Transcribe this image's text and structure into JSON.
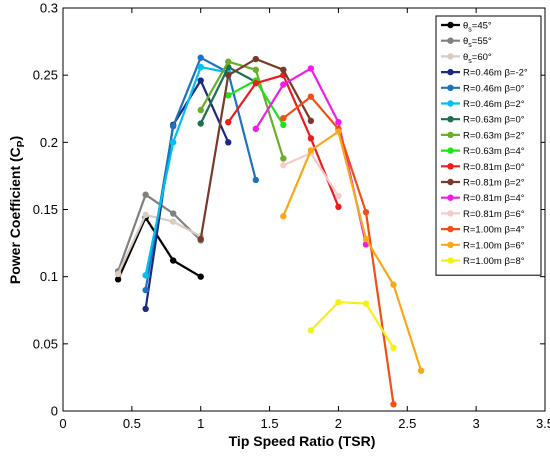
{
  "chart_data": {
    "type": "line",
    "xlabel": "Tip Speed Ratio (TSR)",
    "ylabel": "Power Coefficient (C",
    "ylabel_sub": "P",
    "ylabel_close": ")",
    "xlim": [
      0,
      3.5
    ],
    "ylim": [
      0,
      0.3
    ],
    "xticks": [
      0,
      0.5,
      1,
      1.5,
      2,
      2.5,
      3,
      3.5
    ],
    "yticks": [
      0,
      0.05,
      0.1,
      0.15,
      0.2,
      0.25,
      0.3
    ],
    "xtick_labels": [
      "0",
      "0.5",
      "1",
      "1.5",
      "2",
      "2.5",
      "3",
      "3.5"
    ],
    "ytick_labels": [
      "0",
      "0.05",
      "0.1",
      "0.15",
      "0.2",
      "0.25",
      "0.3"
    ],
    "grid": false,
    "legend_position": "top-right",
    "series": [
      {
        "legend_main": "θ",
        "legend_sub": "s",
        "legend_tail": "=45°",
        "color": "#000000",
        "x": [
          0.4,
          0.6,
          0.8,
          1.0
        ],
        "y": [
          0.098,
          0.144,
          0.112,
          0.1
        ]
      },
      {
        "legend_main": "θ",
        "legend_sub": "s",
        "legend_tail": "=55°",
        "color": "#808080",
        "x": [
          0.4,
          0.6,
          0.8,
          1.0
        ],
        "y": [
          0.104,
          0.161,
          0.147,
          0.127
        ]
      },
      {
        "legend_main": "θ",
        "legend_sub": "s",
        "legend_tail": "=60°",
        "color": "#d8ccc4",
        "x": [
          0.4,
          0.6,
          0.8,
          1.0
        ],
        "y": [
          0.102,
          0.146,
          0.141,
          0.13
        ]
      },
      {
        "legend_main": "R=0.46m β=-2°",
        "legend_sub": "",
        "legend_tail": "",
        "color": "#1b2a80",
        "x": [
          0.6,
          0.8,
          1.0,
          1.2
        ],
        "y": [
          0.076,
          0.213,
          0.246,
          0.2
        ]
      },
      {
        "legend_main": "R=0.46m β=0°",
        "legend_sub": "",
        "legend_tail": "",
        "color": "#1e73be",
        "x": [
          0.6,
          0.8,
          1.0,
          1.2,
          1.4
        ],
        "y": [
          0.09,
          0.212,
          0.263,
          0.252,
          0.172
        ]
      },
      {
        "legend_main": "R=0.46m β=2°",
        "legend_sub": "",
        "legend_tail": "",
        "color": "#00c0f0",
        "x": [
          0.6,
          0.8,
          1.0,
          1.2
        ],
        "y": [
          0.101,
          0.2,
          0.256,
          0.252
        ]
      },
      {
        "legend_main": "R=0.63m β=0°",
        "legend_sub": "",
        "legend_tail": "",
        "color": "#1e6e50",
        "x": [
          1.0,
          1.2,
          1.4
        ],
        "y": [
          0.214,
          0.256,
          0.245
        ]
      },
      {
        "legend_main": "R=0.63m β=2°",
        "legend_sub": "",
        "legend_tail": "",
        "color": "#6aae2a",
        "x": [
          1.0,
          1.2,
          1.4,
          1.6
        ],
        "y": [
          0.224,
          0.26,
          0.254,
          0.188
        ]
      },
      {
        "legend_main": "R=0.63m β=4°",
        "legend_sub": "",
        "legend_tail": "",
        "color": "#22e020",
        "x": [
          1.2,
          1.4,
          1.6
        ],
        "y": [
          0.235,
          0.246,
          0.213
        ]
      },
      {
        "legend_main": "R=0.81m β=0°",
        "legend_sub": "",
        "legend_tail": "",
        "color": "#ee1c1c",
        "x": [
          1.2,
          1.4,
          1.6,
          1.8,
          2.0
        ],
        "y": [
          0.215,
          0.244,
          0.25,
          0.203,
          0.152
        ]
      },
      {
        "legend_main": "R=0.81m β=2°",
        "legend_sub": "",
        "legend_tail": "",
        "color": "#7a3a2a",
        "x": [
          1.0,
          1.2,
          1.4,
          1.6,
          1.8
        ],
        "y": [
          0.128,
          0.25,
          0.262,
          0.254,
          0.216
        ]
      },
      {
        "legend_main": "R=0.81m β=4°",
        "legend_sub": "",
        "legend_tail": "",
        "color": "#ee1ee8",
        "x": [
          1.4,
          1.6,
          1.8,
          2.0,
          2.2
        ],
        "y": [
          0.21,
          0.243,
          0.255,
          0.215,
          0.124
        ]
      },
      {
        "legend_main": "R=0.81m β=6°",
        "legend_sub": "",
        "legend_tail": "",
        "color": "#f4cccc",
        "x": [
          1.6,
          1.8,
          2.0
        ],
        "y": [
          0.183,
          0.192,
          0.16
        ]
      },
      {
        "legend_main": "R=1.00m β=4°",
        "legend_sub": "",
        "legend_tail": "",
        "color": "#f05018",
        "x": [
          1.6,
          1.8,
          2.0,
          2.2,
          2.4
        ],
        "y": [
          0.218,
          0.234,
          0.21,
          0.148,
          0.005
        ]
      },
      {
        "legend_main": "R=1.00m β=6°",
        "legend_sub": "",
        "legend_tail": "",
        "color": "#f8a818",
        "x": [
          1.6,
          1.8,
          2.0,
          2.2,
          2.4,
          2.6
        ],
        "y": [
          0.145,
          0.194,
          0.208,
          0.128,
          0.094,
          0.03
        ]
      },
      {
        "legend_main": "R=1.00m β=8°",
        "legend_sub": "",
        "legend_tail": "",
        "color": "#f4f01c",
        "x": [
          1.8,
          2.0,
          2.2,
          2.4
        ],
        "y": [
          0.06,
          0.081,
          0.08,
          0.047
        ]
      }
    ]
  }
}
